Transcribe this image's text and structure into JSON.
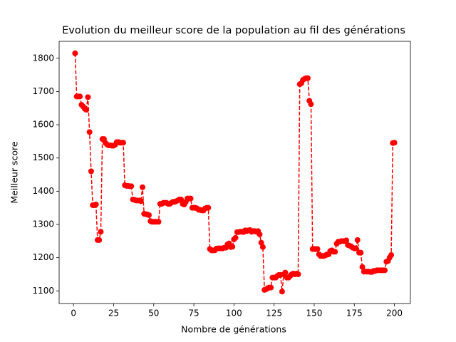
{
  "chart_data": {
    "type": "line",
    "title": "Evolution du meilleur score de la population au fil des générations",
    "x_label": "Nombre de générations",
    "y_label": "Meilleur score",
    "xlim": [
      -8.95,
      209.95
    ],
    "ylim": [
      1062,
      1851
    ],
    "xticks": [
      0,
      25,
      50,
      75,
      100,
      125,
      150,
      175,
      200
    ],
    "yticks": [
      1100,
      1200,
      1300,
      1400,
      1500,
      1600,
      1700,
      1800
    ],
    "grid": false,
    "series": [
      {
        "color": "#ff0000",
        "x": [
          1,
          2,
          3,
          4,
          5,
          6,
          7,
          8,
          9,
          10,
          11,
          12,
          13,
          14,
          15,
          16,
          17,
          18,
          19,
          20,
          21,
          22,
          23,
          24,
          25,
          26,
          27,
          28,
          29,
          30,
          31,
          32,
          33,
          34,
          35,
          36,
          37,
          38,
          39,
          40,
          41,
          42,
          43,
          44,
          45,
          46,
          47,
          48,
          49,
          50,
          51,
          52,
          53,
          54,
          55,
          56,
          57,
          58,
          59,
          60,
          61,
          62,
          63,
          64,
          65,
          66,
          67,
          68,
          69,
          70,
          71,
          72,
          73,
          74,
          75,
          76,
          77,
          78,
          79,
          80,
          81,
          82,
          83,
          84,
          85,
          86,
          87,
          88,
          89,
          90,
          91,
          92,
          93,
          94,
          95,
          96,
          97,
          98,
          99,
          100,
          101,
          102,
          103,
          104,
          105,
          106,
          107,
          108,
          109,
          110,
          111,
          112,
          113,
          114,
          115,
          116,
          117,
          118,
          119,
          120,
          121,
          122,
          123,
          124,
          125,
          126,
          127,
          128,
          129,
          130,
          131,
          132,
          133,
          134,
          135,
          136,
          137,
          138,
          139,
          140,
          141,
          142,
          143,
          144,
          145,
          146,
          147,
          148,
          149,
          150,
          151,
          152,
          153,
          154,
          155,
          156,
          157,
          158,
          159,
          160,
          161,
          162,
          163,
          164,
          165,
          166,
          167,
          168,
          169,
          170,
          171,
          172,
          173,
          174,
          175,
          176,
          177,
          178,
          179,
          180,
          181,
          182,
          183,
          184,
          185,
          186,
          187,
          188,
          189,
          190,
          191,
          192,
          193,
          194,
          195,
          196,
          197,
          198,
          199,
          200
        ],
        "values": [
          1815,
          1685,
          1685,
          1685,
          1660,
          1655,
          1648,
          1645,
          1683,
          1578,
          1460,
          1358,
          1358,
          1360,
          1253,
          1253,
          1278,
          1557,
          1557,
          1545,
          1540,
          1538,
          1538,
          1537,
          1537,
          1540,
          1548,
          1548,
          1546,
          1546,
          1546,
          1418,
          1416,
          1416,
          1415,
          1415,
          1375,
          1374,
          1372,
          1372,
          1372,
          1370,
          1412,
          1332,
          1331,
          1330,
          1328,
          1310,
          1308,
          1308,
          1308,
          1308,
          1308,
          1362,
          1362,
          1365,
          1365,
          1365,
          1362,
          1362,
          1365,
          1368,
          1368,
          1370,
          1372,
          1375,
          1375,
          1362,
          1360,
          1368,
          1378,
          1378,
          1378,
          1350,
          1350,
          1350,
          1348,
          1344,
          1344,
          1342,
          1342,
          1348,
          1350,
          1350,
          1226,
          1222,
          1222,
          1222,
          1227,
          1228,
          1228,
          1228,
          1228,
          1230,
          1230,
          1240,
          1243,
          1232,
          1233,
          1255,
          1260,
          1277,
          1277,
          1278,
          1278,
          1277,
          1282,
          1280,
          1282,
          1283,
          1278,
          1280,
          1280,
          1278,
          1280,
          1270,
          1245,
          1232,
          1103,
          1105,
          1108,
          1110,
          1110,
          1140,
          1140,
          1140,
          1145,
          1148,
          1148,
          1098,
          1150,
          1155,
          1140,
          1140,
          1145,
          1150,
          1152,
          1150,
          1152,
          1150,
          1722,
          1725,
          1735,
          1738,
          1740,
          1740,
          1672,
          1662,
          1226,
          1226,
          1226,
          1226,
          1210,
          1205,
          1205,
          1205,
          1207,
          1210,
          1210,
          1220,
          1222,
          1218,
          1218,
          1242,
          1248,
          1248,
          1250,
          1250,
          1250,
          1252,
          1238,
          1236,
          1234,
          1230,
          1228,
          1228,
          1253,
          1215,
          1215,
          1172,
          1158,
          1158,
          1158,
          1158,
          1157,
          1157,
          1160,
          1160,
          1162,
          1162,
          1162,
          1162,
          1162,
          1162,
          1188,
          1190,
          1200,
          1208,
          1545,
          1546
        ]
      }
    ]
  }
}
